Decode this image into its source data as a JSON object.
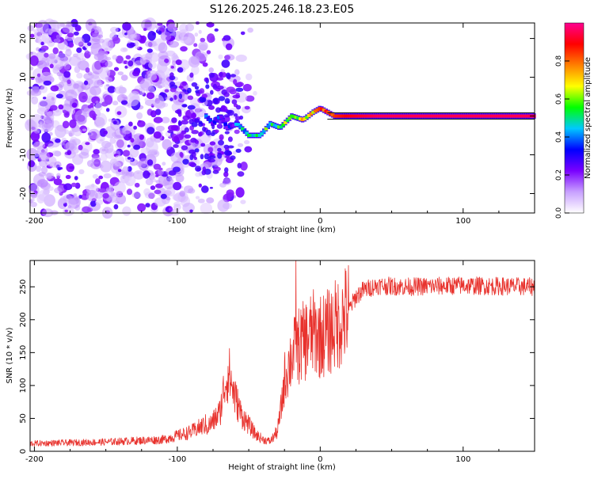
{
  "title": "S126.2025.246.18.23.E05",
  "chart_data": [
    {
      "type": "heatmap",
      "name": "spectrogram",
      "xlabel": "Height of straight line (km)",
      "ylabel": "Frequency (Hz)",
      "xlim": [
        -203,
        150
      ],
      "ylim": [
        -25,
        24
      ],
      "xticks": [
        -200,
        -100,
        0,
        100
      ],
      "xtick_labels": [
        "-200",
        "-100",
        "0",
        "100"
      ],
      "yticks": [
        -20,
        -10,
        0,
        10,
        20
      ],
      "ytick_labels": [
        "-20",
        "-10",
        "0",
        "10",
        "20"
      ],
      "colorbar": {
        "label": "Normalized spectral amplitude",
        "range": [
          0,
          1
        ],
        "ticks": [
          0,
          0.2,
          0.4,
          0.6,
          0.8
        ],
        "tick_labels": [
          "0.0",
          "0.2",
          "0.4",
          "0.6",
          "0.8"
        ],
        "colors": [
          "#ffffff",
          "#c8a0ff",
          "#7a00ff",
          "#0000ff",
          "#00c8ff",
          "#00ff00",
          "#ffff00",
          "#ff8000",
          "#ff0000",
          "#ff0090"
        ]
      },
      "signal_ridge": {
        "x": [
          -80,
          -75,
          -70,
          -65,
          -58,
          -50,
          -42,
          -35,
          -28,
          -20,
          -12,
          -5,
          0,
          5,
          10,
          20,
          40,
          80,
          120,
          150
        ],
        "freq": [
          0,
          -2,
          0,
          -3,
          -2,
          -5,
          -5,
          -2,
          -3,
          0,
          -1,
          1,
          2,
          1,
          0,
          0,
          0,
          0,
          0,
          0
        ],
        "amplitude": [
          0.3,
          0.3,
          0.35,
          0.3,
          0.35,
          0.45,
          0.5,
          0.5,
          0.55,
          0.6,
          0.65,
          0.7,
          0.85,
          0.8,
          0.85,
          0.9,
          0.95,
          0.95,
          0.95,
          0.95
        ]
      },
      "noise_note": "broadband low-amplitude noise for heights below ~-90 km"
    },
    {
      "type": "line",
      "name": "snr",
      "xlabel": "Height of straight line (km)",
      "ylabel": "SNR (10 * v/v)",
      "xlim": [
        -203,
        150
      ],
      "ylim": [
        0,
        290
      ],
      "xticks": [
        -200,
        -100,
        0,
        100
      ],
      "xtick_labels": [
        "-200",
        "-100",
        "0",
        "100"
      ],
      "yticks": [
        0,
        50,
        100,
        150,
        200,
        250
      ],
      "ytick_labels": [
        "0",
        "50",
        "100",
        "150",
        "200",
        "250"
      ],
      "color": "#e8322d",
      "envelope": {
        "x": [
          -203,
          -150,
          -110,
          -100,
          -90,
          -80,
          -75,
          -70,
          -67,
          -64,
          -60,
          -55,
          -50,
          -45,
          -40,
          -35,
          -30,
          -27,
          -25,
          -20,
          -15,
          -10,
          -5,
          0,
          5,
          10,
          15,
          20,
          25,
          30,
          40,
          60,
          100,
          150
        ],
        "y": [
          10,
          12,
          15,
          20,
          25,
          35,
          45,
          60,
          100,
          120,
          85,
          55,
          40,
          25,
          18,
          15,
          30,
          70,
          110,
          145,
          160,
          170,
          180,
          175,
          180,
          190,
          200,
          215,
          235,
          245,
          252,
          250,
          252,
          250
        ]
      },
      "peak": {
        "x": -17,
        "y": 290
      }
    }
  ]
}
